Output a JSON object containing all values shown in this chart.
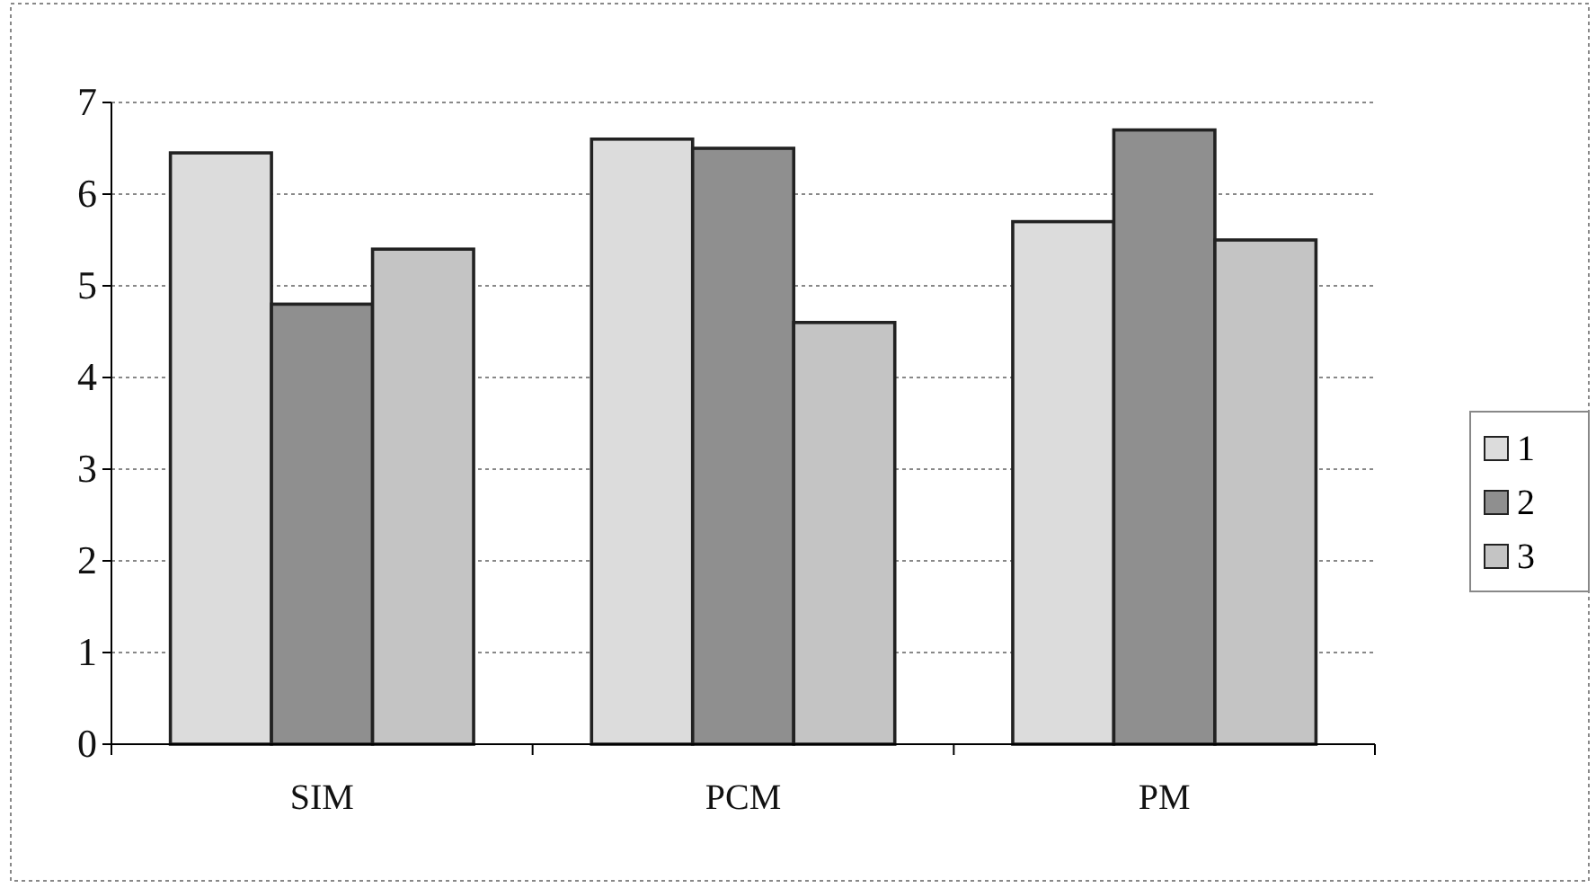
{
  "chart_data": {
    "type": "bar",
    "categories": [
      "SIM",
      "PCM",
      "PM"
    ],
    "series": [
      {
        "name": "1",
        "color": "#dcdcdc",
        "values": [
          6.45,
          6.6,
          5.7
        ]
      },
      {
        "name": "2",
        "color": "#8f8f8f",
        "values": [
          4.8,
          6.5,
          6.7
        ]
      },
      {
        "name": "3",
        "color": "#c4c4c4",
        "values": [
          5.4,
          4.6,
          5.5
        ]
      }
    ],
    "ylim": [
      0,
      7
    ],
    "yticks": [
      0,
      1,
      2,
      3,
      4,
      5,
      6,
      7
    ],
    "grid": "y",
    "legend": "right"
  }
}
